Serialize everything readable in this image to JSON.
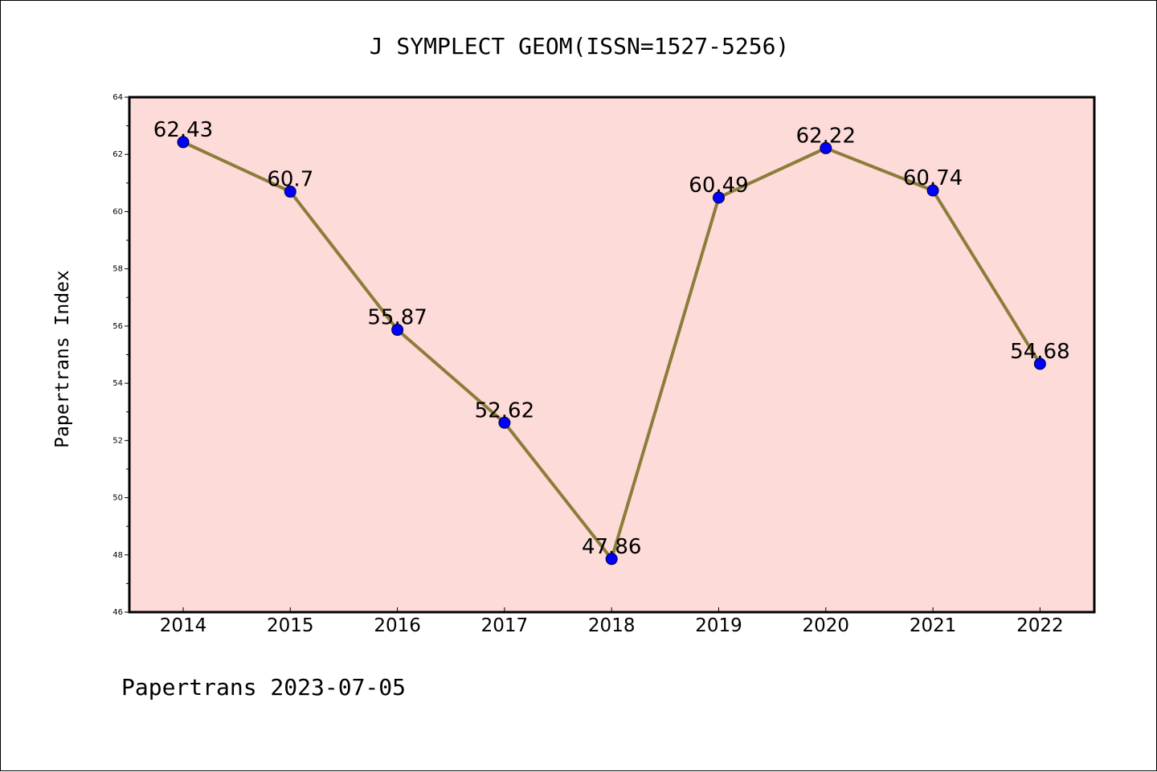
{
  "chart_data": {
    "type": "line",
    "title": "J SYMPLECT GEOM(ISSN=1527-5256)",
    "xlabel": "",
    "ylabel": "Papertrans Index",
    "categories": [
      "2014",
      "2015",
      "2016",
      "2017",
      "2018",
      "2019",
      "2020",
      "2021",
      "2022"
    ],
    "series": [
      {
        "values": [
          62.43,
          60.7,
          55.87,
          52.62,
          47.86,
          60.49,
          62.22,
          60.74,
          54.68
        ],
        "labels": [
          "62.43",
          "60.7",
          "55.87",
          "52.62",
          "47.86",
          "60.49",
          "62.22",
          "60.74",
          "54.68"
        ],
        "line_color": "#8b7d3a",
        "marker_color": "#0000ff"
      }
    ],
    "ylim": [
      46,
      64
    ],
    "yticks": [
      46,
      48,
      50,
      52,
      54,
      56,
      58,
      60,
      62,
      64
    ],
    "grid": false,
    "plot_background": "#fddbd9"
  },
  "footer": "Papertrans 2023-07-05"
}
